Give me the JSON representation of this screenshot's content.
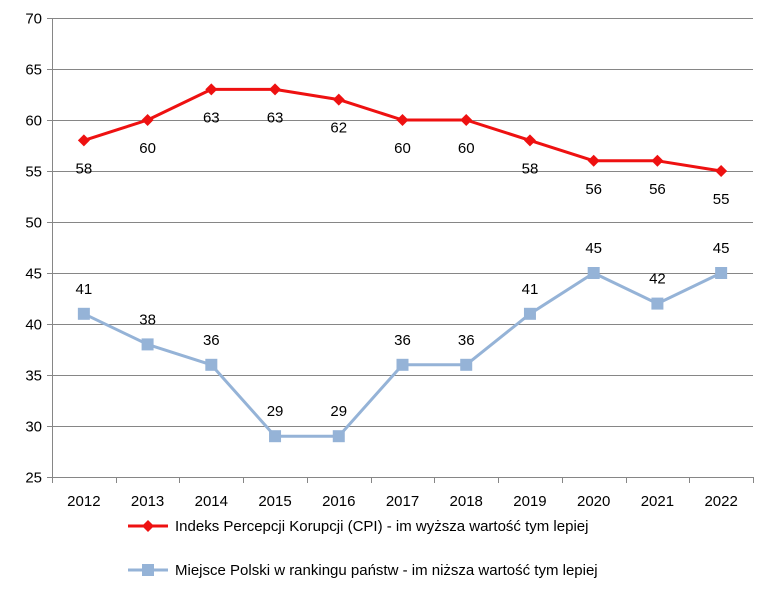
{
  "chart_data": {
    "type": "line",
    "title": "",
    "xlabel": "",
    "ylabel": "",
    "ylim": [
      25,
      70
    ],
    "ystep": 5,
    "grid": true,
    "legend_position": "bottom",
    "categories": [
      "2012",
      "2013",
      "2014",
      "2015",
      "2016",
      "2017",
      "2018",
      "2019",
      "2020",
      "2021",
      "2022"
    ],
    "series": [
      {
        "name": "Indeks Percepcji Korupcji (CPI) - im wyższa wartość tym lepiej",
        "values": [
          58,
          60,
          63,
          63,
          62,
          60,
          60,
          58,
          56,
          56,
          55
        ],
        "color": "#ee1111",
        "marker": "diamond",
        "label_position": "below"
      },
      {
        "name": "Miejsce Polski w rankingu państw - im niższa wartość tym lepiej",
        "values": [
          41,
          38,
          36,
          29,
          29,
          36,
          36,
          41,
          45,
          42,
          45
        ],
        "color": "#95b3d7",
        "marker": "square",
        "label_position": "above"
      }
    ]
  }
}
